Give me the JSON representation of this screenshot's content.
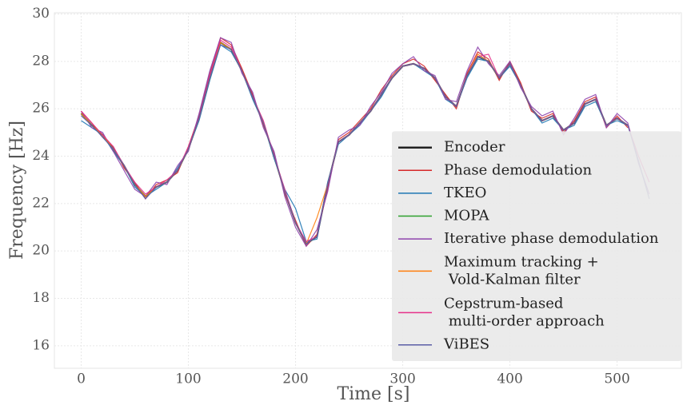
{
  "chart_data": {
    "type": "line",
    "x_label": "Time [s]",
    "y_label": "Frequency [Hz]",
    "x": [
      0,
      10,
      20,
      30,
      40,
      50,
      60,
      70,
      80,
      90,
      100,
      110,
      120,
      130,
      140,
      150,
      160,
      170,
      180,
      190,
      200,
      210,
      220,
      230,
      240,
      250,
      260,
      270,
      280,
      290,
      300,
      310,
      320,
      330,
      340,
      350,
      360,
      370,
      380,
      390,
      400,
      410,
      420,
      430,
      440,
      450,
      460,
      470,
      480,
      490,
      500,
      510,
      520,
      530
    ],
    "xlim": [
      -25,
      560
    ],
    "xticks": [
      0,
      100,
      200,
      300,
      400,
      500
    ],
    "ylim": [
      15.05,
      30.05
    ],
    "yticks": [
      16,
      18,
      20,
      22,
      24,
      26,
      28,
      30
    ],
    "grid": true,
    "legend": "lower right",
    "series": [
      {
        "name": "Encoder",
        "color": "#222222",
        "values": [
          25.8,
          25.3,
          24.9,
          24.3,
          23.6,
          22.8,
          22.3,
          22.7,
          22.9,
          23.4,
          24.3,
          25.6,
          27.3,
          28.8,
          28.5,
          27.6,
          26.5,
          25.4,
          24.0,
          22.5,
          21.2,
          20.3,
          20.6,
          22.8,
          24.6,
          24.9,
          25.4,
          25.9,
          26.6,
          27.3,
          27.8,
          27.9,
          27.7,
          27.3,
          26.5,
          26.1,
          27.4,
          28.2,
          28.0,
          27.3,
          27.9,
          27.0,
          26.0,
          25.5,
          25.7,
          25.1,
          25.4,
          26.2,
          26.4,
          25.3,
          25.6,
          25.3,
          null,
          null
        ]
      },
      {
        "name": "Phase demodulation",
        "color": "#d62728",
        "values": [
          25.9,
          25.4,
          24.8,
          24.4,
          23.5,
          22.9,
          22.2,
          22.8,
          23.0,
          23.3,
          24.4,
          25.7,
          27.5,
          29.0,
          28.7,
          27.7,
          26.6,
          25.3,
          24.1,
          22.4,
          21.3,
          20.2,
          20.7,
          22.6,
          24.7,
          25.0,
          25.5,
          26.0,
          26.8,
          27.4,
          27.9,
          28.1,
          27.8,
          27.2,
          26.6,
          26.0,
          27.5,
          28.4,
          28.1,
          27.2,
          28.0,
          27.1,
          25.9,
          25.6,
          25.8,
          25.0,
          25.5,
          26.3,
          26.5,
          25.2,
          25.7,
          25.2,
          null,
          null
        ]
      },
      {
        "name": "TKEO",
        "color": "#1f77b4",
        "values": [
          25.5,
          25.2,
          24.9,
          24.2,
          23.6,
          22.7,
          22.3,
          22.6,
          22.9,
          23.5,
          24.3,
          25.5,
          27.2,
          28.7,
          28.4,
          27.6,
          26.4,
          25.4,
          23.9,
          22.6,
          21.8,
          20.4,
          20.5,
          22.9,
          24.5,
          24.9,
          25.3,
          25.9,
          26.5,
          27.3,
          27.8,
          27.9,
          27.6,
          27.3,
          26.4,
          26.1,
          27.3,
          28.1,
          28.0,
          27.3,
          27.8,
          27.0,
          26.0,
          25.4,
          25.6,
          25.1,
          25.3,
          26.1,
          26.3,
          25.3,
          25.5,
          25.3,
          null,
          null
        ]
      },
      {
        "name": "MOPA",
        "color": "#2ca02c",
        "values": [
          25.8,
          25.3,
          24.9,
          24.3,
          23.6,
          22.8,
          22.3,
          22.7,
          22.9,
          23.4,
          24.3,
          25.6,
          27.3,
          28.8,
          28.5,
          27.6,
          26.5,
          25.4,
          24.0,
          22.5,
          21.2,
          20.3,
          20.6,
          22.8,
          24.6,
          24.9,
          25.4,
          25.9,
          26.6,
          27.3,
          27.8,
          27.9,
          27.7,
          27.3,
          26.5,
          26.1,
          27.4,
          28.2,
          28.0,
          27.3,
          27.9,
          27.0,
          26.0,
          25.5,
          25.7,
          25.1,
          25.4,
          26.2,
          26.4,
          25.3,
          25.6,
          25.3,
          null,
          null
        ]
      },
      {
        "name": "Iterative phase demodulation",
        "color": "#8e44ad",
        "values": [
          25.9,
          25.2,
          25.0,
          24.2,
          23.4,
          22.6,
          22.3,
          22.9,
          22.8,
          23.6,
          24.2,
          25.8,
          27.6,
          29.0,
          28.8,
          27.5,
          26.7,
          25.2,
          24.2,
          22.3,
          21.0,
          20.2,
          20.9,
          22.5,
          24.8,
          25.1,
          25.3,
          26.1,
          26.7,
          27.5,
          27.9,
          28.2,
          27.6,
          27.4,
          26.4,
          26.3,
          27.6,
          28.6,
          27.9,
          27.4,
          28.0,
          26.9,
          26.1,
          25.7,
          25.9,
          24.9,
          25.6,
          26.4,
          26.6,
          25.2,
          25.8,
          25.4,
          23.7,
          22.4
        ]
      },
      {
        "name": "Maximum tracking +\n Vold-Kalman filter",
        "color": "#ff7f0e",
        "values": [
          25.8,
          25.3,
          24.9,
          24.3,
          23.6,
          22.8,
          22.3,
          22.7,
          22.9,
          23.4,
          24.3,
          25.6,
          27.3,
          28.8,
          28.5,
          27.6,
          26.5,
          25.4,
          24.0,
          22.5,
          21.2,
          20.3,
          21.4,
          22.8,
          24.6,
          24.9,
          25.4,
          25.9,
          26.6,
          27.3,
          27.8,
          27.9,
          27.7,
          27.3,
          26.5,
          26.1,
          27.4,
          28.3,
          28.0,
          27.3,
          27.9,
          27.0,
          26.0,
          25.5,
          25.7,
          25.1,
          25.4,
          26.2,
          26.4,
          25.3,
          25.6,
          25.3,
          null,
          null
        ]
      },
      {
        "name": "Cepstrum-based\n multi-order approach",
        "color": "#e6308a",
        "values": [
          25.9,
          25.4,
          24.9,
          24.4,
          23.6,
          22.9,
          22.4,
          22.7,
          23.0,
          23.4,
          24.4,
          25.6,
          27.4,
          28.9,
          28.6,
          27.6,
          26.5,
          25.5,
          24.0,
          22.6,
          21.2,
          20.4,
          20.6,
          22.8,
          24.6,
          24.9,
          25.4,
          25.9,
          26.6,
          27.3,
          27.8,
          27.9,
          27.7,
          27.3,
          26.5,
          26.1,
          27.4,
          28.2,
          28.3,
          27.3,
          27.9,
          27.0,
          26.0,
          25.5,
          25.7,
          25.1,
          25.4,
          26.2,
          26.4,
          25.3,
          25.6,
          25.3,
          24.0,
          22.9
        ]
      },
      {
        "name": "ViBES",
        "color": "#5b5ea6",
        "values": [
          25.7,
          25.3,
          24.8,
          24.3,
          23.6,
          22.8,
          22.2,
          22.7,
          22.9,
          23.4,
          24.3,
          25.6,
          27.3,
          28.7,
          28.5,
          27.6,
          26.5,
          25.4,
          24.0,
          22.5,
          21.2,
          20.3,
          20.6,
          22.8,
          24.6,
          24.9,
          25.4,
          25.9,
          26.6,
          27.3,
          27.8,
          27.9,
          27.7,
          27.3,
          26.5,
          26.1,
          27.4,
          28.2,
          28.0,
          27.3,
          27.9,
          27.0,
          26.0,
          25.5,
          25.7,
          25.1,
          25.4,
          26.2,
          26.4,
          25.3,
          25.6,
          25.3,
          23.8,
          22.2
        ]
      }
    ]
  }
}
